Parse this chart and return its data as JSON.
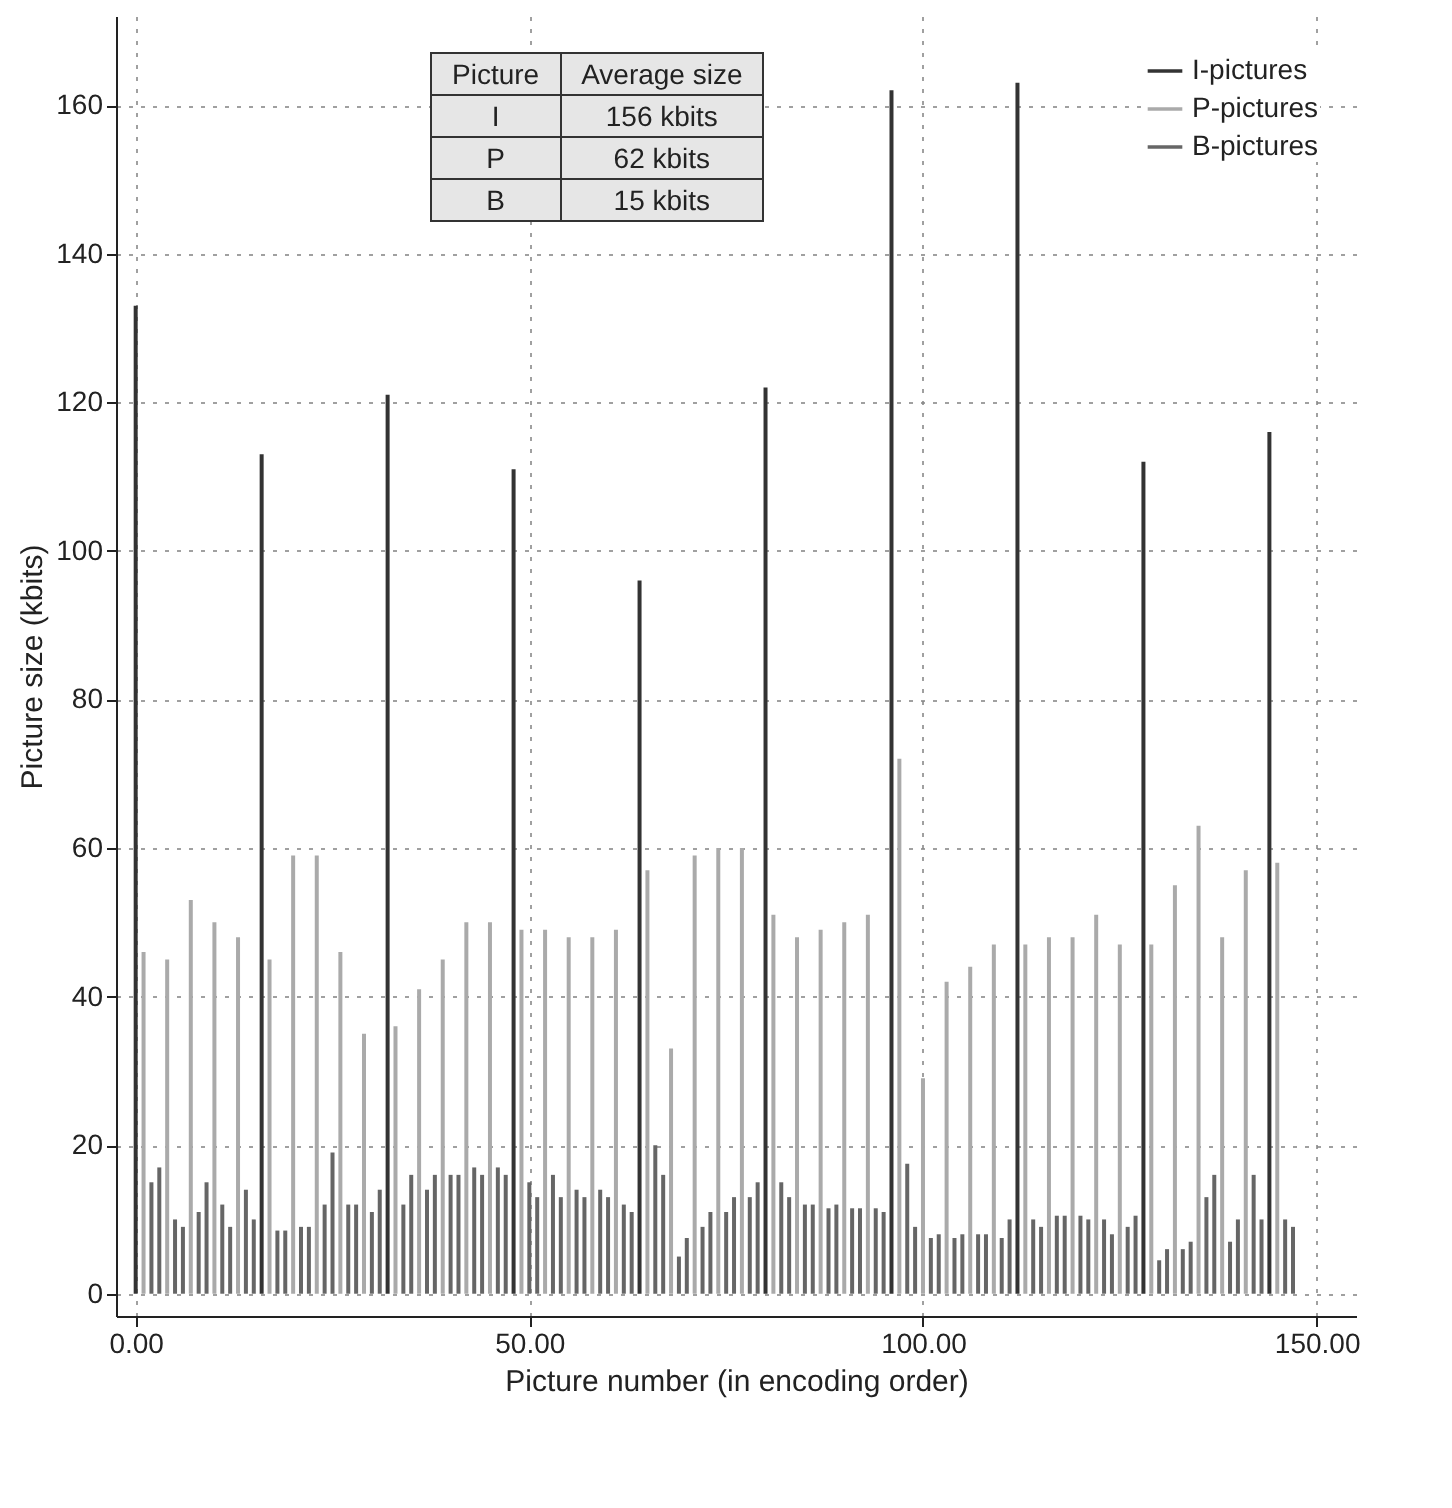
{
  "chart_data": {
    "type": "bar",
    "xlabel": "Picture number (in encoding order)",
    "ylabel": "Picture size (kbits)",
    "xlim": [
      -2.5,
      155
    ],
    "xticks": [
      {
        "value": 0,
        "label": "0.00"
      },
      {
        "value": 50,
        "label": "50.00"
      },
      {
        "value": 100,
        "label": "100.00"
      },
      {
        "value": 150,
        "label": "150.00"
      }
    ],
    "ylim": [
      -3,
      172
    ],
    "yticks": [
      0,
      20,
      40,
      60,
      80,
      100,
      120,
      140,
      160
    ],
    "grid": true,
    "legend": "top right",
    "annotations": [
      "Picture",
      "Average size",
      "I",
      "156 kbits",
      "P",
      "62 kbits",
      "B",
      "15 kbits"
    ],
    "series": [
      {
        "name": "I-pictures",
        "color": "#333333",
        "x": [
          0,
          16,
          32,
          48,
          64,
          80,
          96,
          112,
          128,
          144
        ],
        "values": [
          133,
          113,
          121,
          111,
          96,
          122,
          162,
          163,
          112,
          116
        ]
      },
      {
        "name": "P-pictures",
        "color": "#aaaaaa",
        "x": [
          1,
          4,
          7,
          10,
          13,
          17,
          20,
          23,
          26,
          29,
          33,
          36,
          39,
          42,
          45,
          49,
          52,
          55,
          58,
          61,
          65,
          68,
          71,
          74,
          77,
          81,
          84,
          87,
          90,
          93,
          97,
          100,
          103,
          106,
          109,
          113,
          116,
          119,
          122,
          125,
          129,
          132,
          135,
          138,
          141,
          145
        ],
        "values": [
          46,
          45,
          53,
          50,
          48,
          45,
          59,
          59,
          46,
          35,
          36,
          41,
          45,
          50,
          50,
          49,
          49,
          48,
          48,
          49,
          57,
          33,
          59,
          60,
          60,
          51,
          48,
          49,
          50,
          51,
          72,
          29,
          42,
          44,
          47,
          47,
          48,
          48,
          51,
          47,
          47,
          55,
          63,
          48,
          57,
          58
        ]
      },
      {
        "name": "B-pictures",
        "color": "#666666",
        "x": [
          2,
          3,
          5,
          6,
          8,
          9,
          11,
          12,
          14,
          15,
          18,
          19,
          21,
          22,
          24,
          25,
          27,
          28,
          30,
          31,
          34,
          35,
          37,
          38,
          40,
          41,
          43,
          44,
          46,
          47,
          50,
          51,
          53,
          54,
          56,
          57,
          59,
          60,
          62,
          63,
          66,
          67,
          69,
          70,
          72,
          73,
          75,
          76,
          78,
          79,
          82,
          83,
          85,
          86,
          88,
          89,
          91,
          92,
          94,
          95,
          98,
          99,
          101,
          102,
          104,
          105,
          107,
          108,
          110,
          111,
          114,
          115,
          117,
          118,
          120,
          121,
          123,
          124,
          126,
          127,
          130,
          131,
          133,
          134,
          136,
          137,
          139,
          140,
          142,
          143,
          146,
          147
        ],
        "values": [
          15,
          17,
          10,
          9,
          11,
          15,
          12,
          9,
          14,
          10,
          8.5,
          8.5,
          9,
          9,
          12,
          19,
          12,
          12,
          11,
          14,
          12,
          16,
          14,
          16,
          16,
          16,
          17,
          16,
          17,
          16,
          15,
          13,
          16,
          13,
          14,
          13,
          14,
          13,
          12,
          11,
          20,
          16,
          5,
          7.5,
          9,
          11,
          11,
          13,
          13,
          15,
          15,
          13,
          12,
          12,
          11.5,
          12,
          11.5,
          11.5,
          11.5,
          11,
          17.5,
          9,
          7.5,
          8,
          7.5,
          8,
          8,
          8,
          7.5,
          10,
          10,
          9,
          10.5,
          10.5,
          10.5,
          10,
          10,
          8,
          9,
          10.5,
          4.5,
          6,
          6,
          7,
          13,
          16,
          7,
          10,
          16,
          10,
          10,
          9
        ]
      }
    ]
  }
}
